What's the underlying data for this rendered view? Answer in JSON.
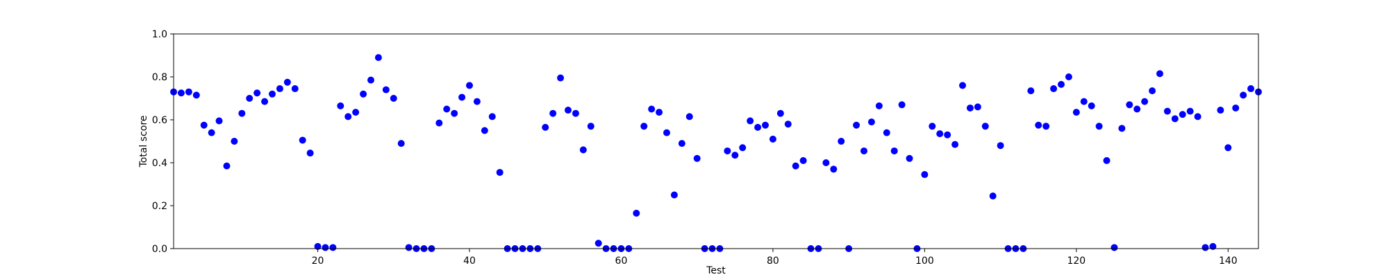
{
  "chart_data": {
    "type": "scatter",
    "xlabel": "Test",
    "ylabel": "Total score",
    "xlim": [
      1,
      144
    ],
    "ylim": [
      0,
      1.0
    ],
    "x_ticks": [
      20,
      40,
      60,
      80,
      100,
      120,
      140
    ],
    "y_ticks": [
      "0.0",
      "0.2",
      "0.4",
      "0.6",
      "0.8",
      "1.0"
    ],
    "grid": false,
    "legend": "none",
    "point_color": "#0000ff",
    "x": [
      1,
      2,
      3,
      4,
      5,
      6,
      7,
      8,
      9,
      10,
      11,
      12,
      13,
      14,
      15,
      16,
      17,
      18,
      19,
      20,
      21,
      22,
      23,
      24,
      25,
      26,
      27,
      28,
      29,
      30,
      31,
      32,
      33,
      34,
      35,
      36,
      37,
      38,
      39,
      40,
      41,
      42,
      43,
      44,
      45,
      46,
      47,
      48,
      49,
      50,
      51,
      52,
      53,
      54,
      55,
      56,
      57,
      58,
      59,
      60,
      61,
      62,
      63,
      64,
      65,
      66,
      67,
      68,
      69,
      70,
      71,
      72,
      73,
      74,
      75,
      76,
      77,
      78,
      79,
      80,
      81,
      82,
      83,
      84,
      85,
      86,
      87,
      88,
      89,
      90,
      91,
      92,
      93,
      94,
      95,
      96,
      97,
      98,
      99,
      100,
      101,
      102,
      103,
      104,
      105,
      106,
      107,
      108,
      109,
      110,
      111,
      112,
      113,
      114,
      115,
      116,
      117,
      118,
      119,
      120,
      121,
      122,
      123,
      124,
      125,
      126,
      127,
      128,
      129,
      130,
      131,
      132,
      133,
      134,
      135,
      136,
      137,
      138,
      139,
      140,
      141,
      142,
      143,
      144
    ],
    "y": [
      0.73,
      0.725,
      0.73,
      0.715,
      0.575,
      0.54,
      0.595,
      0.385,
      0.5,
      0.63,
      0.7,
      0.725,
      0.685,
      0.72,
      0.745,
      0.775,
      0.745,
      0.505,
      0.445,
      0.01,
      0.005,
      0.005,
      0.665,
      0.615,
      0.635,
      0.72,
      0.785,
      0.89,
      0.74,
      0.7,
      0.49,
      0.005,
      0.0,
      0.0,
      0.0,
      0.585,
      0.65,
      0.63,
      0.705,
      0.76,
      0.685,
      0.55,
      0.615,
      0.355,
      0.0,
      0.0,
      0.0,
      0.0,
      0.0,
      0.565,
      0.63,
      0.795,
      0.645,
      0.63,
      0.46,
      0.57,
      0.025,
      0.0,
      0.0,
      0.0,
      0.0,
      0.165,
      0.57,
      0.65,
      0.635,
      0.54,
      0.25,
      0.49,
      0.615,
      0.42,
      0.0,
      0.0,
      0.0,
      0.455,
      0.435,
      0.47,
      0.595,
      0.565,
      0.575,
      0.51,
      0.63,
      0.58,
      0.385,
      0.41,
      0.0,
      0.0,
      0.4,
      0.37,
      0.5,
      0.0,
      0.575,
      0.455,
      0.59,
      0.665,
      0.54,
      0.455,
      0.67,
      0.42,
      0.0,
      0.345,
      0.57,
      0.535,
      0.53,
      0.485,
      0.76,
      0.655,
      0.66,
      0.57,
      0.245,
      0.48,
      0.0,
      0.0,
      0.0,
      0.735,
      0.575,
      0.57,
      0.745,
      0.765,
      0.8,
      0.635,
      0.685,
      0.665,
      0.57,
      0.41,
      0.005,
      0.56,
      0.67,
      0.65,
      0.685,
      0.735,
      0.815,
      0.64,
      0.605,
      0.625,
      0.64,
      0.615,
      0.005,
      0.01,
      0.645,
      0.47,
      0.655,
      0.715,
      0.745,
      0.73
    ]
  }
}
